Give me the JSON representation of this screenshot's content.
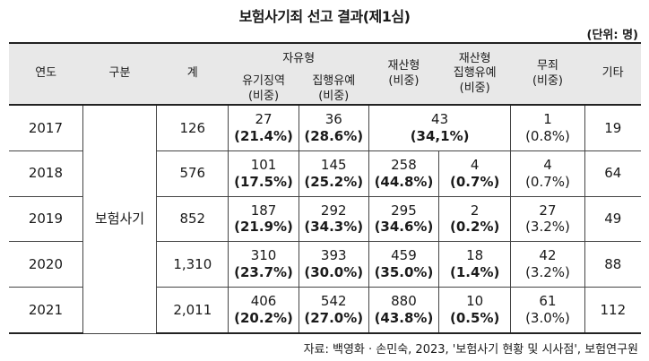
{
  "title": "보험사기죄 선고 결과(제1심)",
  "unit": "(단위: 명)",
  "headers": {
    "year": "연도",
    "category": "구분",
    "total": "계",
    "probation_group": "자유형",
    "prison": "유기징역",
    "suspended": "집행유예",
    "property": "재산형",
    "property_suspended": "재산형",
    "property_suspended_2": "집행유예",
    "acquittal": "무죄",
    "other": "기타",
    "ratio": "(비중)"
  },
  "category_value": "보험사기",
  "rows": [
    {
      "year": "2017",
      "total": "126",
      "prison": "27",
      "prison_pct": "(21.4%)",
      "suspended": "36",
      "suspended_pct": "(28.6%)",
      "property_merged": "43",
      "property_merged_pct": "(34,1%)",
      "acquittal": "1",
      "acquittal_pct": "(0.8%)",
      "other": "19"
    },
    {
      "year": "2018",
      "total": "576",
      "prison": "101",
      "prison_pct": "(17.5%)",
      "suspended": "145",
      "suspended_pct": "(25.2%)",
      "property": "258",
      "property_pct": "(44.8%)",
      "property_suspended": "4",
      "property_suspended_pct": "(0.7%)",
      "acquittal": "4",
      "acquittal_pct": "(0.7%)",
      "other": "64"
    },
    {
      "year": "2019",
      "total": "852",
      "prison": "187",
      "prison_pct": "(21.9%)",
      "suspended": "292",
      "suspended_pct": "(34.3%)",
      "property": "295",
      "property_pct": "(34.6%)",
      "property_suspended": "2",
      "property_suspended_pct": "(0.2%)",
      "acquittal": "27",
      "acquittal_pct": "(3.2%)",
      "other": "49"
    },
    {
      "year": "2020",
      "total": "1,310",
      "prison": "310",
      "prison_pct": "(23.7%)",
      "suspended": "393",
      "suspended_pct": "(30.0%)",
      "property": "459",
      "property_pct": "(35.0%)",
      "property_suspended": "18",
      "property_suspended_pct": "(1.4%)",
      "acquittal": "42",
      "acquittal_pct": "(3.2%)",
      "other": "88"
    },
    {
      "year": "2021",
      "total": "2,011",
      "prison": "406",
      "prison_pct": "(20.2%)",
      "suspended": "542",
      "suspended_pct": "(27.0%)",
      "property": "880",
      "property_pct": "(43.8%)",
      "property_suspended": "10",
      "property_suspended_pct": "(0.5%)",
      "acquittal": "61",
      "acquittal_pct": "(3.0%)",
      "other": "112"
    }
  ],
  "source": "자료: 백영화 · 손민숙, 2023, '보험사기 현황 및 시사점', 보험연구원"
}
